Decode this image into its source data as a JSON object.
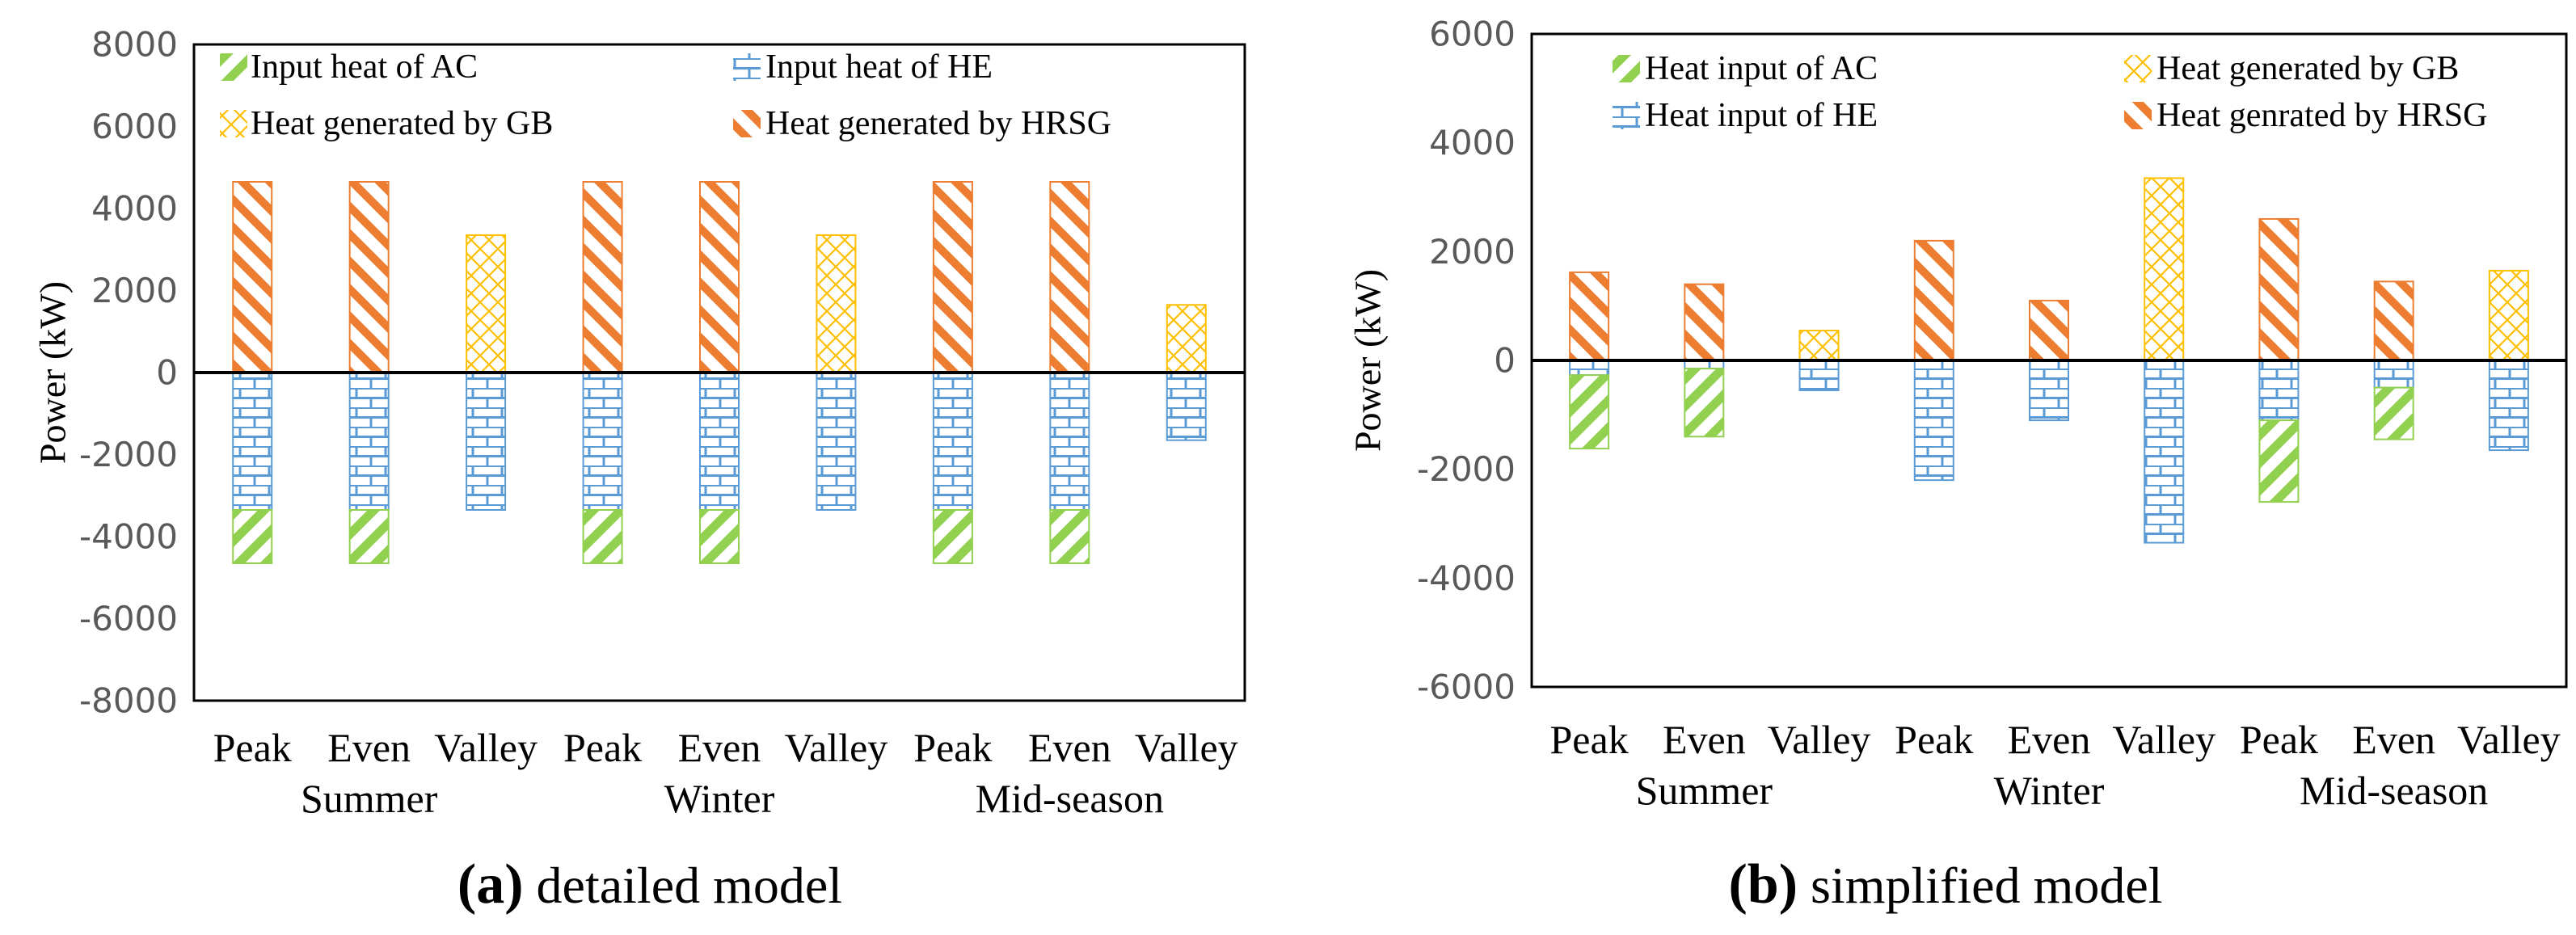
{
  "colors": {
    "ac": "#92d050",
    "he": "#5b9bd5",
    "gb": "#ffc000",
    "hrsg": "#ed7d31",
    "axis": "#000000",
    "tick_text": "#595959"
  },
  "chart_data": [
    {
      "type": "bar",
      "stacked": true,
      "caption_letter": "(a)",
      "caption_text": "detailed model",
      "ylabel": "Power (kW)",
      "ylim": [
        -8000,
        8000
      ],
      "ytick_step": 2000,
      "ytick_labels": [
        "8000",
        "6000",
        "4000",
        "2000",
        "0",
        "-2000",
        "-4000",
        "-6000",
        "-8000"
      ],
      "categories": [
        "Peak",
        "Even",
        "Valley",
        "Peak",
        "Even",
        "Valley",
        "Peak",
        "Even",
        "Valley"
      ],
      "groups": [
        "Summer",
        "Winter",
        "Mid-season"
      ],
      "legend": [
        {
          "key": "ac",
          "label": "Input heat of AC"
        },
        {
          "key": "he",
          "label": "Input heat of HE"
        },
        {
          "key": "gb",
          "label": "Heat generated by GB"
        },
        {
          "key": "hrsg",
          "label": "Heat generated by HRSG"
        }
      ],
      "series": [
        {
          "key": "ac",
          "values": [
            -1300,
            -1300,
            0,
            -1300,
            -1300,
            0,
            -1300,
            -1300,
            0
          ]
        },
        {
          "key": "he",
          "values": [
            -3350,
            -3350,
            -3350,
            -3350,
            -3350,
            -3350,
            -3350,
            -3350,
            -1650
          ]
        },
        {
          "key": "gb",
          "values": [
            0,
            0,
            3350,
            0,
            0,
            3350,
            0,
            0,
            1650
          ]
        },
        {
          "key": "hrsg",
          "values": [
            4650,
            4650,
            0,
            4650,
            4650,
            0,
            4650,
            4650,
            0
          ]
        }
      ]
    },
    {
      "type": "bar",
      "stacked": true,
      "caption_letter": "(b)",
      "caption_text": "simplified model",
      "ylabel": "Power (kW)",
      "ylim": [
        -6000,
        6000
      ],
      "ytick_step": 2000,
      "ytick_labels": [
        "6000",
        "4000",
        "2000",
        "0",
        "-2000",
        "-4000",
        "-6000"
      ],
      "categories": [
        "Peak",
        "Even",
        "Valley",
        "Peak",
        "Even",
        "Valley",
        "Peak",
        "Even",
        "Valley"
      ],
      "groups": [
        "Summer",
        "Winter",
        "Mid-season"
      ],
      "legend": [
        {
          "key": "ac",
          "label": "Heat input of AC"
        },
        {
          "key": "gb",
          "label": "Heat generated by GB"
        },
        {
          "key": "he",
          "label": "Heat input of HE"
        },
        {
          "key": "hrsg",
          "label": "Heat genrated by HRSG"
        }
      ],
      "series": [
        {
          "key": "ac",
          "values": [
            -1350,
            -1250,
            0,
            0,
            0,
            0,
            -1500,
            -950,
            0
          ]
        },
        {
          "key": "he",
          "values": [
            -270,
            -150,
            -550,
            -2200,
            -1100,
            -3350,
            -1100,
            -500,
            -1650
          ]
        },
        {
          "key": "gb",
          "values": [
            0,
            0,
            550,
            0,
            0,
            3350,
            0,
            0,
            1650
          ]
        },
        {
          "key": "hrsg",
          "values": [
            1620,
            1400,
            0,
            2200,
            1100,
            0,
            2600,
            1450,
            0
          ]
        }
      ]
    }
  ]
}
